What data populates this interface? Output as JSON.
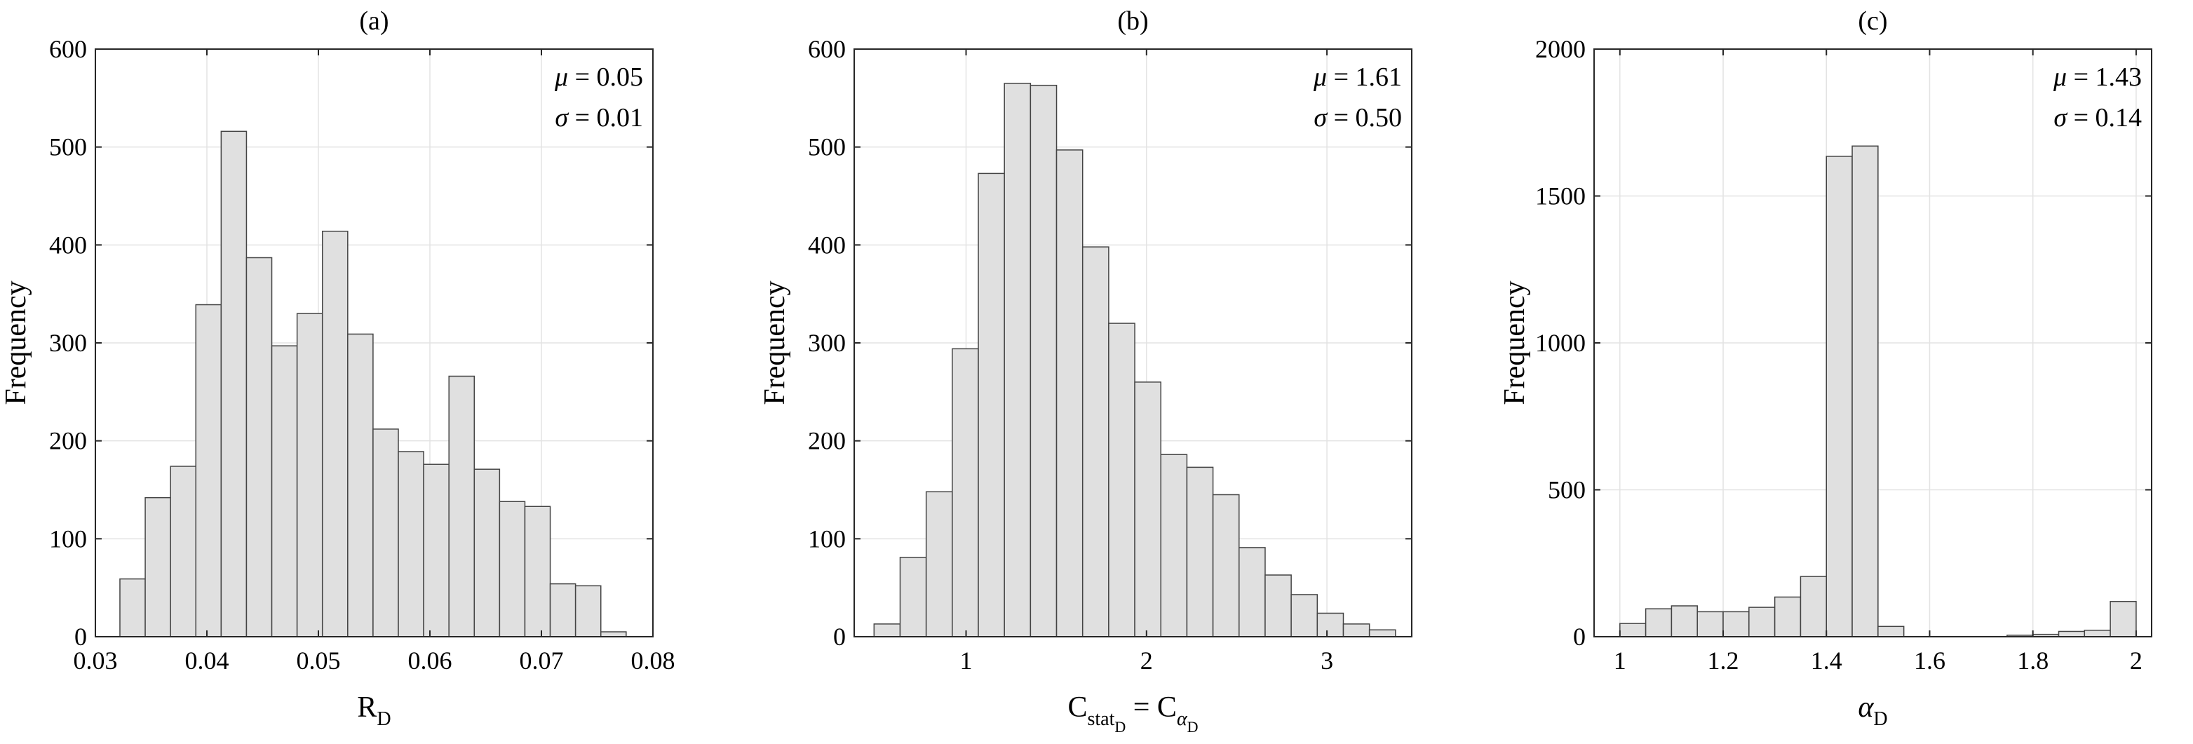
{
  "chart_data": [
    {
      "type": "bar",
      "panel": "a",
      "title": "(a)",
      "xlabel": {
        "base": "R",
        "sub": "D"
      },
      "ylabel": "Frequency",
      "xlim": [
        0.03,
        0.08
      ],
      "ylim": [
        0,
        600
      ],
      "xticks": [
        0.03,
        0.04,
        0.05,
        0.06,
        0.07,
        0.08
      ],
      "xtick_labels": [
        "0.03",
        "0.04",
        "0.05",
        "0.06",
        "0.07",
        "0.08"
      ],
      "yticks": [
        0,
        100,
        200,
        300,
        400,
        500,
        600
      ],
      "ytick_labels": [
        "0",
        "100",
        "200",
        "300",
        "400",
        "500",
        "600"
      ],
      "grid": true,
      "bins_start": 0.0322,
      "bin_width": 0.00227,
      "values": [
        59,
        142,
        174,
        339,
        516,
        387,
        297,
        330,
        414,
        309,
        212,
        189,
        176,
        266,
        171,
        138,
        133,
        54,
        52,
        5
      ],
      "stats": {
        "mu_symbol": "μ",
        "mu_text": " = 0.05",
        "sigma_symbol": "σ",
        "sigma_text": " = 0.01"
      }
    },
    {
      "type": "bar",
      "panel": "b",
      "title": "(b)",
      "xlabel": {
        "base": "C",
        "sub": "stat",
        "sub2": "D",
        "eq": " = C",
        "greek": "α",
        "greek_sub": "D"
      },
      "ylabel": "Frequency",
      "xlim": [
        0.38,
        3.47
      ],
      "ylim": [
        0,
        600
      ],
      "xticks": [
        1,
        2,
        3
      ],
      "xtick_labels": [
        "1",
        "2",
        "3"
      ],
      "yticks": [
        0,
        100,
        200,
        300,
        400,
        500,
        600
      ],
      "ytick_labels": [
        "0",
        "100",
        "200",
        "300",
        "400",
        "500",
        "600"
      ],
      "grid": true,
      "bins_start": 0.49,
      "bin_width": 0.1445,
      "values": [
        13,
        81,
        148,
        294,
        473,
        565,
        563,
        497,
        398,
        320,
        260,
        186,
        173,
        145,
        91,
        63,
        43,
        24,
        13,
        7
      ],
      "stats": {
        "mu_symbol": "μ",
        "mu_text": " = 1.61",
        "sigma_symbol": "σ",
        "sigma_text": " = 0.50"
      }
    },
    {
      "type": "bar",
      "panel": "c",
      "title": "(c)",
      "xlabel": {
        "greek": "α",
        "sub": "D"
      },
      "ylabel": "Frequency",
      "xlim": [
        0.95,
        2.03
      ],
      "ylim": [
        0,
        2000
      ],
      "xticks": [
        1,
        1.2,
        1.4,
        1.6,
        1.8,
        2
      ],
      "xtick_labels": [
        "1",
        "1.2",
        "1.4",
        "1.6",
        "1.8",
        "2"
      ],
      "yticks": [
        0,
        500,
        1000,
        1500,
        2000
      ],
      "ytick_labels": [
        "0",
        "500",
        "1000",
        "1500",
        "2000"
      ],
      "grid": true,
      "bins_start": 1.0,
      "bin_width": 0.05,
      "values": [
        45,
        95,
        105,
        85,
        85,
        100,
        135,
        205,
        1635,
        1670,
        35,
        0,
        0,
        0,
        0,
        5,
        8,
        18,
        22,
        120
      ],
      "stats": {
        "mu_symbol": "μ",
        "mu_text": " = 1.43",
        "sigma_symbol": "σ",
        "sigma_text": " = 0.14"
      }
    }
  ],
  "colors": {
    "bar_fill": "#e0e0e0",
    "bar_stroke": "#444444",
    "grid": "#e3e3e3",
    "axis": "#262626",
    "text": "#000000"
  }
}
